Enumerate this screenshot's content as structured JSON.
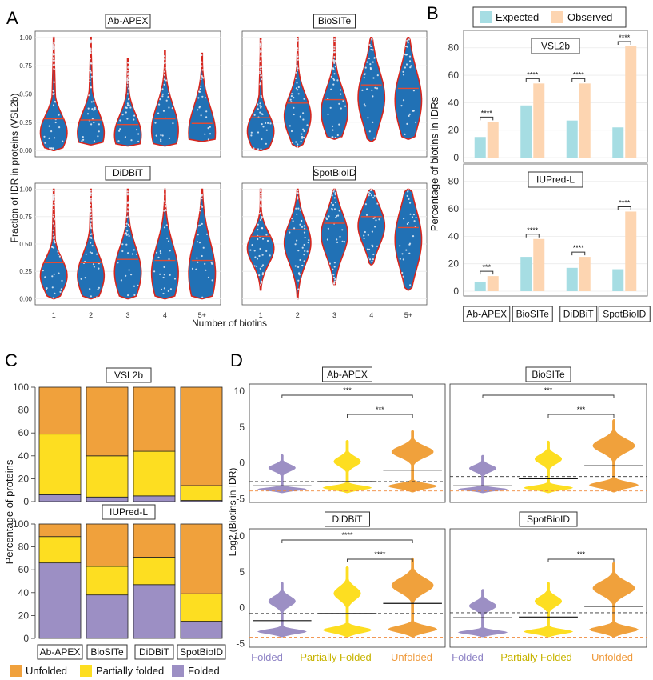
{
  "panel_letters": {
    "a": "A",
    "b": "B",
    "c": "C",
    "d": "D"
  },
  "colors": {
    "violin_fill": "#2171b5",
    "violin_border": "#d7261e",
    "median": "#e34a33",
    "expected": "#a6dde3",
    "observed": "#fdd5b1",
    "unfolded": "#f0a13c",
    "partially_folded": "#fdde21",
    "folded": "#9c8fc4",
    "ref_black": "#333333",
    "ref_orange": "#f08a3c"
  },
  "legend_b": [
    "Expected",
    "Observed"
  ],
  "legend_c": [
    "Unfolded",
    "Partially folded",
    "Folded"
  ],
  "methods": [
    "Ab-APEX",
    "BioSITe",
    "DiDBiT",
    "SpotBioID"
  ],
  "chart_data": [
    {
      "id": "A",
      "type": "violin",
      "ylabel": "Fraction of IDR in proteins (VSL2b)",
      "xlabel": "Number of biotins",
      "categories": [
        "1",
        "2",
        "3",
        "4",
        "5+"
      ],
      "yticks": [
        "0.00",
        "0.25",
        "0.50",
        "0.75",
        "1.00"
      ],
      "ylim": [
        0,
        1
      ],
      "facets": [
        {
          "name": "Ab-APEX",
          "median": [
            0.28,
            0.27,
            0.23,
            0.28,
            0.24
          ],
          "min": [
            0.0,
            0.05,
            0.04,
            0.04,
            0.08
          ],
          "max": [
            1.0,
            1.0,
            0.81,
            0.88,
            0.86
          ]
        },
        {
          "name": "BioSITe",
          "median": [
            0.29,
            0.42,
            0.45,
            0.58,
            0.55
          ],
          "min": [
            0.0,
            0.03,
            0.1,
            0.08,
            0.1
          ],
          "max": [
            0.99,
            1.0,
            1.0,
            1.0,
            1.0
          ]
        },
        {
          "name": "DiDBiT",
          "median": [
            0.33,
            0.33,
            0.36,
            0.35,
            0.35
          ],
          "min": [
            0.0,
            0.0,
            0.0,
            0.0,
            0.0
          ],
          "max": [
            1.0,
            1.0,
            1.0,
            1.0,
            1.0
          ]
        },
        {
          "name": "SpotBioID",
          "median": [
            0.57,
            0.63,
            0.69,
            0.75,
            0.65
          ],
          "min": [
            0.08,
            0.0,
            0.13,
            0.31,
            0.08
          ],
          "max": [
            1.0,
            1.0,
            1.0,
            1.0,
            1.0
          ]
        }
      ]
    },
    {
      "id": "B",
      "type": "bar",
      "ylabel": "Percentage of biotins in IDRs",
      "categories": [
        "Ab-APEX",
        "BioSITe",
        "DiDBiT",
        "SpotBioID"
      ],
      "yticks": [
        "0",
        "20",
        "40",
        "60",
        "80"
      ],
      "ylim": [
        0,
        88
      ],
      "facets": [
        {
          "name": "VSL2b",
          "series": [
            {
              "name": "Expected",
              "values": [
                15,
                38,
                27,
                22
              ]
            },
            {
              "name": "Observed",
              "values": [
                26,
                54,
                54,
                81
              ]
            }
          ],
          "significance": [
            "****",
            "****",
            "****",
            "****"
          ]
        },
        {
          "name": "IUPred-L",
          "series": [
            {
              "name": "Expected",
              "values": [
                7,
                25,
                17,
                16
              ]
            },
            {
              "name": "Observed",
              "values": [
                11,
                38,
                25,
                58
              ]
            }
          ],
          "significance": [
            "***",
            "****",
            "****",
            "****"
          ]
        }
      ]
    },
    {
      "id": "C",
      "type": "bar",
      "ylabel": "Percentage of proteins",
      "categories": [
        "Ab-APEX",
        "BioSITe",
        "DiDBiT",
        "SpotBioID"
      ],
      "yticks": [
        "0",
        "20",
        "40",
        "60",
        "80",
        "100"
      ],
      "ylim": [
        0,
        100
      ],
      "facets": [
        {
          "name": "VSL2b",
          "series": [
            {
              "name": "Folded",
              "values": [
                6,
                4,
                5,
                1
              ]
            },
            {
              "name": "Partially folded",
              "values": [
                53,
                36,
                39,
                13
              ]
            },
            {
              "name": "Unfolded",
              "values": [
                41,
                60,
                56,
                86
              ]
            }
          ]
        },
        {
          "name": "IUPred-L",
          "series": [
            {
              "name": "Folded",
              "values": [
                66,
                38,
                47,
                15
              ]
            },
            {
              "name": "Partially folded",
              "values": [
                23,
                25,
                24,
                24
              ]
            },
            {
              "name": "Unfolded",
              "values": [
                11,
                37,
                29,
                61
              ]
            }
          ]
        }
      ]
    },
    {
      "id": "D",
      "type": "violin",
      "ylabel": "Log2 (Biotins in IDR)",
      "categories": [
        "Folded",
        "Partially Folded",
        "Unfolded"
      ],
      "yticks": [
        "-5",
        "0",
        "5",
        "10"
      ],
      "ylim": [
        -5.5,
        11
      ],
      "facets": [
        {
          "name": "Ab-APEX",
          "median": [
            -3.2,
            -2.6,
            -1.0
          ],
          "ref_black": -2.6,
          "ref_orange": -3.9,
          "range": [
            [
              -4.2,
              1.2
            ],
            [
              -4.2,
              3.2
            ],
            [
              -4.1,
              4.6
            ]
          ],
          "brackets": [
            {
              "from": 0,
              "to": 2,
              "label": "***"
            },
            {
              "from": 1,
              "to": 2,
              "label": "***"
            }
          ]
        },
        {
          "name": "BioSITe",
          "median": [
            -3.2,
            -2.2,
            -0.4
          ],
          "ref_black": -1.9,
          "ref_orange": -3.9,
          "range": [
            [
              -4.2,
              1.1
            ],
            [
              -4.2,
              3.1
            ],
            [
              -4.1,
              6.1
            ]
          ],
          "brackets": [
            {
              "from": 0,
              "to": 2,
              "label": "***"
            },
            {
              "from": 1,
              "to": 2,
              "label": "***"
            }
          ]
        },
        {
          "name": "DiDBiT",
          "median": [
            -1.8,
            -0.8,
            0.6
          ],
          "ref_black": -0.8,
          "ref_orange": -4.1,
          "range": [
            [
              -4.1,
              3.6
            ],
            [
              -4.1,
              5.8
            ],
            [
              -4.1,
              7.0
            ]
          ],
          "brackets": [
            {
              "from": 0,
              "to": 2,
              "label": "****"
            },
            {
              "from": 1,
              "to": 2,
              "label": "****"
            }
          ]
        },
        {
          "name": "SpotBioID",
          "median": [
            -1.4,
            -1.3,
            0.2
          ],
          "ref_black": -0.7,
          "ref_orange": -4.1,
          "range": [
            [
              -4.1,
              2.6
            ],
            [
              -4.1,
              3.6
            ],
            [
              -4.1,
              6.4
            ]
          ],
          "brackets": [
            {
              "from": 1,
              "to": 2,
              "label": "***"
            }
          ]
        }
      ]
    }
  ]
}
